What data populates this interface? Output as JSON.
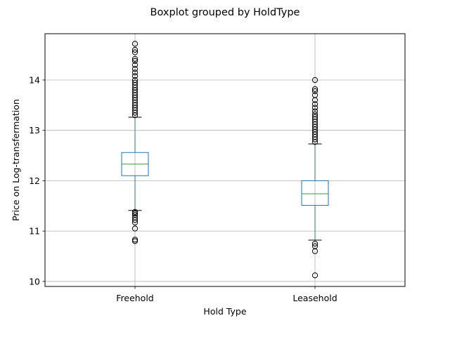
{
  "chart_data": {
    "type": "box",
    "title": "Boxplot grouped by HoldType",
    "xlabel": "Hold Type",
    "ylabel": "Price on Log-transfermation",
    "ylim": [
      9.9,
      14.92
    ],
    "yticks": [
      10,
      11,
      12,
      13,
      14
    ],
    "grid": true,
    "categories": [
      "Freehold",
      "Leasehold"
    ],
    "boxes": [
      {
        "category": "Freehold",
        "whisker_low": 11.41,
        "q1": 12.1,
        "median": 12.33,
        "q3": 12.56,
        "whisker_high": 13.26,
        "outliers": [
          10.8,
          10.83,
          11.05,
          11.17,
          11.22,
          11.27,
          11.32,
          11.35,
          11.38,
          13.3,
          13.35,
          13.4,
          13.45,
          13.5,
          13.55,
          13.6,
          13.65,
          13.7,
          13.75,
          13.8,
          13.85,
          13.9,
          13.95,
          14.0,
          14.08,
          14.15,
          14.22,
          14.3,
          14.38,
          14.42,
          14.55,
          14.6,
          14.72
        ]
      },
      {
        "category": "Leasehold",
        "whisker_low": 10.82,
        "q1": 11.51,
        "median": 11.74,
        "q3": 12.0,
        "whisker_high": 12.73,
        "outliers": [
          10.12,
          10.6,
          10.7,
          10.75,
          12.77,
          12.82,
          12.87,
          12.92,
          12.97,
          13.02,
          13.07,
          13.12,
          13.17,
          13.22,
          13.27,
          13.32,
          13.38,
          13.45,
          13.52,
          13.6,
          13.7,
          13.78,
          13.82,
          14.0
        ]
      }
    ],
    "colors": {
      "box": "#1f77b4",
      "median": "#2ca02c",
      "whisker_cap": "#000000",
      "flier": "#000000",
      "grid": "#b0b0b0",
      "spine": "#000000"
    }
  }
}
